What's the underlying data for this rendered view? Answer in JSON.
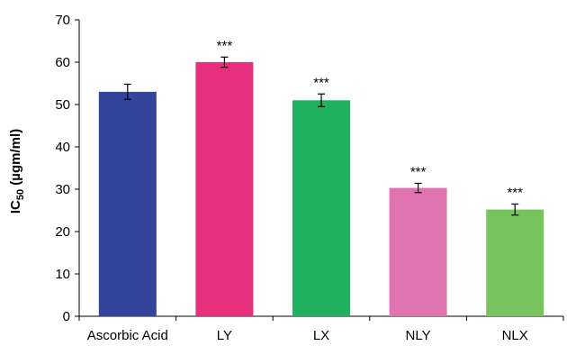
{
  "chart_data": {
    "type": "bar",
    "categories": [
      "Ascorbic Acid",
      "LY",
      "LX",
      "NLY",
      "NLX"
    ],
    "values": [
      53,
      60,
      51,
      30.3,
      25.2
    ],
    "errors": [
      1.8,
      1.2,
      1.5,
      1.1,
      1.3
    ],
    "significance": [
      "",
      "***",
      "***",
      "***",
      "***"
    ],
    "colors": [
      "#33449a",
      "#e62f7d",
      "#1fb15f",
      "#e074b0",
      "#79c35f"
    ],
    "ylabel": {
      "prefix": "IC",
      "subscript": "50",
      "suffix": " (µgm/ml)"
    },
    "ylim": [
      0,
      70
    ],
    "yticks": [
      0,
      10,
      20,
      30,
      40,
      50,
      60,
      70
    ],
    "grid": false
  }
}
